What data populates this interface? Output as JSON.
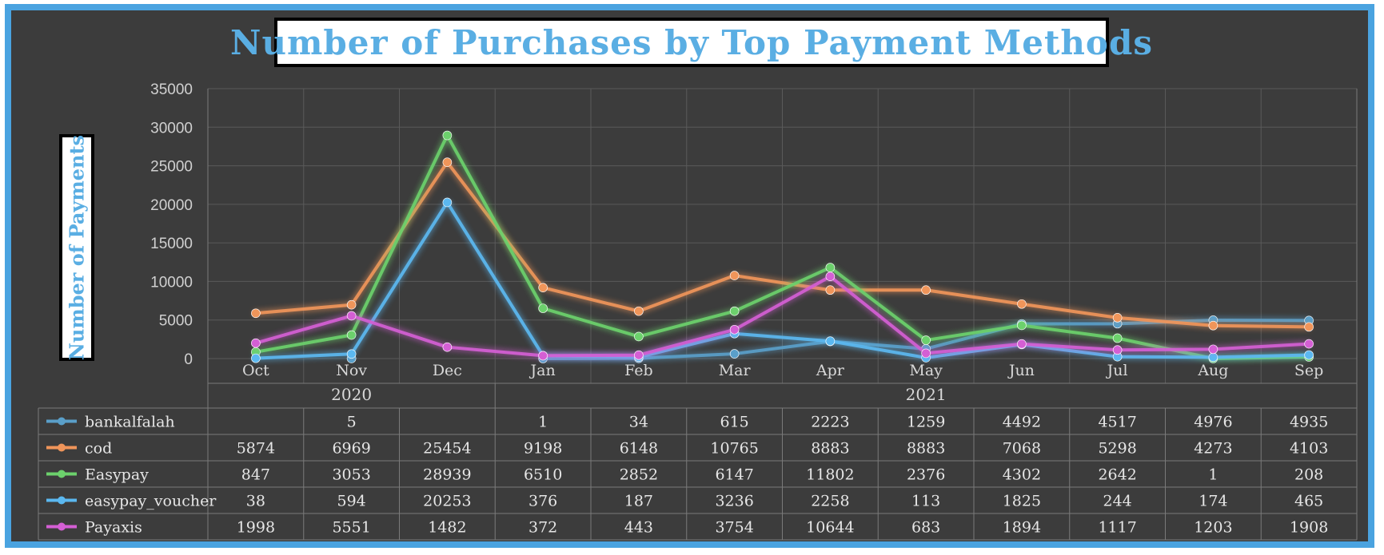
{
  "chart_data": {
    "type": "line",
    "title": "Number of Purchases by Top Payment Methods",
    "ylabel": "Number of Payments",
    "xlabel": "",
    "ylim": [
      0,
      35000
    ],
    "yticks": [
      "35000",
      "30000",
      "25000",
      "20000",
      "15000",
      "10000",
      "5000",
      "0"
    ],
    "categories": [
      "Oct",
      "Nov",
      "Dec",
      "Jan",
      "Feb",
      "Mar",
      "Apr",
      "May",
      "Jun",
      "Jul",
      "Aug",
      "Sep"
    ],
    "years": [
      {
        "label": "2020",
        "count": 3
      },
      {
        "label": "2021",
        "count": 9
      }
    ],
    "grid": true,
    "legend": "data-table",
    "series": [
      {
        "name": "bankalfalah",
        "color": "#5a9fc9",
        "values": [
          null,
          5,
          null,
          1,
          34,
          615,
          2223,
          1259,
          4492,
          4517,
          4976,
          4935
        ]
      },
      {
        "name": "cod",
        "color": "#f0955a",
        "values": [
          5874,
          6969,
          25454,
          9198,
          6148,
          10765,
          8883,
          8883,
          7068,
          5298,
          4273,
          4103
        ]
      },
      {
        "name": "Easypay",
        "color": "#6cd16c",
        "values": [
          847,
          3053,
          28939,
          6510,
          2852,
          6147,
          11802,
          2376,
          4302,
          2642,
          1,
          208
        ]
      },
      {
        "name": "easypay_voucher",
        "color": "#5bb8f0",
        "values": [
          38,
          594,
          20253,
          376,
          187,
          3236,
          2258,
          113,
          1825,
          244,
          174,
          465
        ]
      },
      {
        "name": "Payaxis",
        "color": "#d45fd4",
        "values": [
          1998,
          5551,
          1482,
          372,
          443,
          3754,
          10644,
          683,
          1894,
          1117,
          1203,
          1908
        ]
      }
    ]
  }
}
